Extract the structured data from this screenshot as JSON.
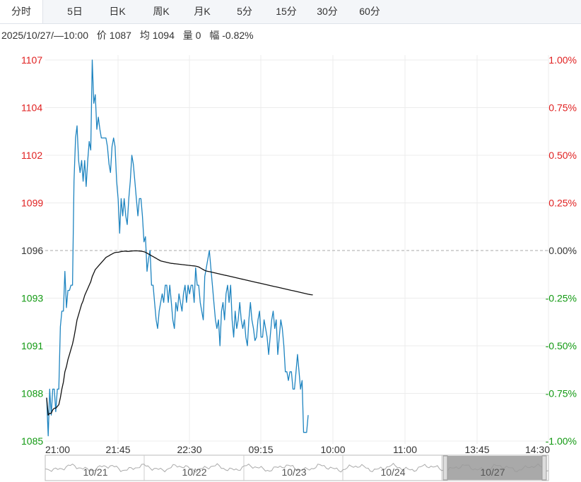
{
  "tabs": [
    {
      "label": "分时",
      "active": true
    },
    {
      "label": "5日"
    },
    {
      "label": "日K"
    },
    {
      "label": "周K"
    },
    {
      "label": "月K"
    },
    {
      "label": "5分"
    },
    {
      "label": "15分"
    },
    {
      "label": "30分"
    },
    {
      "label": "60分"
    }
  ],
  "info": {
    "time": "2025/10/27/—10:00",
    "price_label": "价 1087",
    "avg_label": "均 1094",
    "volume_label": "量 0",
    "change_label": "幅 -0.82%"
  },
  "colors": {
    "up": "#e02020",
    "down": "#119911",
    "price_line": "#1e84c0",
    "avg_line": "#111111",
    "grid": "#ececec",
    "baseline": "#aaaaaa"
  },
  "chart_data": {
    "type": "line",
    "base_price": 1096,
    "ylim": [
      1085,
      1107
    ],
    "y_ticks": [
      "1107",
      "1104",
      "1102",
      "1099",
      "1096",
      "1093",
      "1091",
      "1088",
      "1085"
    ],
    "pct_ticks": [
      "1.00%",
      "0.75%",
      "0.50%",
      "0.25%",
      "0.00%",
      "-0.25%",
      "-0.50%",
      "-0.75%",
      "-1.00%"
    ],
    "x_ticks": [
      "21:00",
      "21:45",
      "22:30",
      "09:15",
      "10:00",
      "11:00",
      "13:45",
      "14:30"
    ],
    "grid": true,
    "series": [
      {
        "values": [
          1087.5,
          1085.3,
          1088,
          1086.5,
          1088,
          1088,
          1086.7,
          1088,
          1088,
          1091.6,
          1092.5,
          1092.5,
          1094.8,
          1092.7,
          1093.7,
          1093.7,
          1094,
          1094,
          1100,
          1102.5,
          1103.2,
          1101.2,
          1100.5,
          1101.2,
          1100,
          1101.2,
          1099.7,
          1101.2,
          1102.3,
          1101.8,
          1107,
          1104.5,
          1105,
          1103,
          1103.7,
          1103,
          1102.5,
          1102.5,
          1102.5,
          1102.5,
          1102,
          1101,
          1100.5,
          1102,
          1102.5,
          1102,
          1100,
          1099,
          1097,
          1099,
          1098,
          1099,
          1098,
          1097.5,
          1099,
          1100,
          1101.5,
          1101,
          1100,
          1099,
          1098,
          1099,
          1099,
          1098,
          1096.5,
          1096.8,
          1094.8,
          1095.5,
          1096,
          1094,
          1094,
          1093,
          1092,
          1091.5,
          1092.5,
          1093,
          1093.5,
          1093,
          1094,
          1094,
          1093,
          1094,
          1093,
          1092,
          1091.5,
          1093,
          1092.5,
          1093.5,
          1093,
          1092.5,
          1093.5,
          1094,
          1093,
          1094,
          1093.5,
          1094,
          1094,
          1093,
          1095,
          1094,
          1094,
          1093,
          1092.5,
          1092,
          1094.5,
          1095,
          1095.5,
          1096,
          1095,
          1094,
          1093,
          1092,
          1091.5,
          1092,
          1090.5,
          1092.5,
          1093,
          1092,
          1093.5,
          1094,
          1093,
          1094,
          1092,
          1091,
          1092.5,
          1091.5,
          1092,
          1093,
          1092,
          1091.5,
          1092,
          1091,
          1090.5,
          1092,
          1093,
          1092,
          1091.5,
          1090.8,
          1091,
          1092,
          1092.5,
          1091,
          1091,
          1092,
          1091.5,
          1091,
          1090,
          1091,
          1092,
          1092.5,
          1091.5,
          1092,
          1090,
          1091,
          1092,
          1091.5,
          1090.5,
          1089,
          1089,
          1088.5,
          1089,
          1089,
          1088,
          1088,
          1089,
          1090,
          1089,
          1088,
          1088.5,
          1085.5,
          1085.5,
          1085.5,
          1086.5
        ],
        "avg": [
          1087.5,
          1086.5,
          1086.6,
          1086.6,
          1086.8,
          1086.9,
          1086.9,
          1087,
          1087.1,
          1087.5,
          1088,
          1088.4,
          1089,
          1089.3,
          1089.7,
          1090,
          1090.3,
          1090.6,
          1091,
          1091.5,
          1092,
          1092.3,
          1092.6,
          1092.9,
          1093.1,
          1093.4,
          1093.6,
          1093.8,
          1094,
          1094.2,
          1094.5,
          1094.7,
          1094.9,
          1095,
          1095.1,
          1095.2,
          1095.3,
          1095.4,
          1095.5,
          1095.6,
          1095.65,
          1095.7,
          1095.75,
          1095.8,
          1095.85,
          1095.88,
          1095.9,
          1095.9,
          1095.92,
          1095.94,
          1095.95,
          1095.96,
          1095.96,
          1095.95,
          1095.95,
          1095.96,
          1095.97,
          1095.98,
          1095.98,
          1095.98,
          1095.98,
          1095.97,
          1095.96,
          1095.95,
          1095.93,
          1095.9,
          1095.85,
          1095.8,
          1095.75,
          1095.7,
          1095.65,
          1095.6,
          1095.55,
          1095.5,
          1095.45,
          1095.4,
          1095.38,
          1095.36,
          1095.34,
          1095.32,
          1095.3,
          1095.28,
          1095.26,
          1095.25,
          1095.24,
          1095.23,
          1095.22,
          1095.21,
          1095.2,
          1095.19,
          1095.18,
          1095.17,
          1095.16,
          1095.15,
          1095.14,
          1095.13,
          1095.12,
          1095.11,
          1095.1,
          1095.08,
          1095.05,
          1095,
          1094.95,
          1094.9,
          1094.85,
          1094.82,
          1094.8,
          1094.78,
          1094.76,
          1094.74,
          1094.72,
          1094.7,
          1094.68,
          1094.66,
          1094.64,
          1094.62,
          1094.6,
          1094.58,
          1094.56,
          1094.54,
          1094.52,
          1094.5,
          1094.48,
          1094.46,
          1094.44,
          1094.42,
          1094.4,
          1094.38,
          1094.36,
          1094.34,
          1094.32,
          1094.3,
          1094.28,
          1094.26,
          1094.24,
          1094.22,
          1094.2,
          1094.18,
          1094.16,
          1094.14,
          1094.12,
          1094.1,
          1094.08,
          1094.06,
          1094.04,
          1094.02,
          1094,
          1093.98,
          1093.96,
          1093.94,
          1093.92,
          1093.9,
          1093.88,
          1093.86,
          1093.84,
          1093.82,
          1093.8,
          1093.78,
          1093.76,
          1093.74,
          1093.72,
          1093.7,
          1093.68,
          1093.66,
          1093.64,
          1093.62,
          1093.6,
          1093.58,
          1093.56,
          1093.54,
          1093.52,
          1093.5,
          1093.48,
          1093.46,
          1093.45,
          1093.44
        ]
      }
    ],
    "navigator": {
      "dates": [
        "10/21",
        "10/22",
        "10/23",
        "10/24",
        "10/27"
      ]
    }
  }
}
